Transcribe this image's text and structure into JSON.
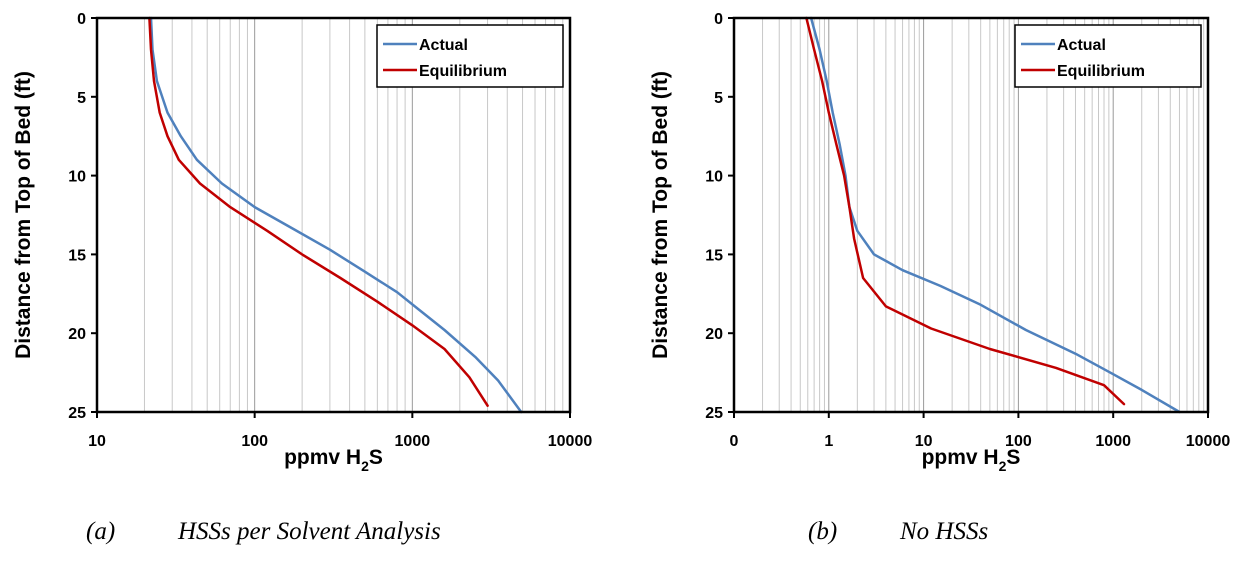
{
  "charts": [
    {
      "type": "line",
      "xscale": "log",
      "xlim": [
        10,
        10000
      ],
      "ylim": [
        0,
        25
      ],
      "y_inverted": true,
      "xlabel_parts": [
        "ppmv H",
        "2",
        "S"
      ],
      "ylabel": "Distance from Top of Bed (ft)",
      "x_ticks": [
        10,
        100,
        1000,
        10000
      ],
      "x_tick_labels": [
        "10",
        "100",
        "1000",
        "10000"
      ],
      "y_ticks": [
        0,
        5,
        10,
        15,
        20,
        25
      ],
      "y_tick_labels": [
        "0",
        "5",
        "10",
        "15",
        "20",
        "25"
      ],
      "grid": {
        "x_minor": true,
        "y": false
      },
      "legend_position": "top-right",
      "series": [
        {
          "name": "Actual",
          "color": "#4f81bd",
          "x": [
            22,
            22.5,
            24,
            28,
            34,
            43,
            62,
            100,
            170,
            300,
            500,
            800,
            1100,
            1600,
            2500,
            3500,
            4900
          ],
          "y": [
            0,
            2,
            4,
            6,
            7.5,
            9,
            10.5,
            12,
            13.3,
            14.7,
            16.1,
            17.4,
            18.5,
            19.8,
            21.5,
            23,
            25
          ]
        },
        {
          "name": "Equilibrium",
          "color": "#c00000",
          "x": [
            21.5,
            22,
            23,
            25,
            28,
            33,
            45,
            70,
            120,
            200,
            350,
            600,
            1000,
            1600,
            2300,
            3000
          ],
          "y": [
            0,
            2,
            4,
            6,
            7.5,
            9,
            10.5,
            12,
            13.5,
            15,
            16.5,
            18,
            19.5,
            21,
            22.8,
            24.6
          ]
        }
      ]
    },
    {
      "type": "line",
      "xscale": "log",
      "xlim": [
        0.1,
        10000
      ],
      "ylim": [
        0,
        25
      ],
      "y_inverted": true,
      "xlabel_parts": [
        "ppmv H",
        "2",
        "S"
      ],
      "ylabel": "Distance from Top of Bed (ft)",
      "x_ticks": [
        0.1,
        1,
        10,
        100,
        1000,
        10000
      ],
      "x_tick_labels": [
        "0",
        "1",
        "10",
        "100",
        "1000",
        "10000"
      ],
      "y_ticks": [
        0,
        5,
        10,
        15,
        20,
        25
      ],
      "y_tick_labels": [
        "0",
        "5",
        "10",
        "15",
        "20",
        "25"
      ],
      "grid": {
        "x_minor": true,
        "y": false
      },
      "legend_position": "top-right",
      "series": [
        {
          "name": "Actual",
          "color": "#4f81bd",
          "x": [
            0.65,
            0.8,
            0.95,
            1.1,
            1.3,
            1.5,
            1.65,
            2,
            3,
            6,
            15,
            40,
            120,
            400,
            1000,
            2000,
            5000
          ],
          "y": [
            0,
            2,
            4,
            6,
            8,
            10,
            12,
            13.5,
            15,
            16,
            17,
            18.2,
            19.8,
            21.3,
            22.6,
            23.6,
            25
          ]
        },
        {
          "name": "Equilibrium",
          "color": "#c00000",
          "x": [
            0.58,
            0.7,
            0.85,
            1.0,
            1.2,
            1.45,
            1.65,
            1.85,
            2.3,
            4,
            12,
            50,
            250,
            800,
            1300
          ],
          "y": [
            0,
            2,
            4,
            6,
            8,
            10,
            12,
            14,
            16.5,
            18.3,
            19.7,
            21,
            22.2,
            23.3,
            24.5
          ]
        }
      ]
    }
  ],
  "captions": [
    {
      "label": "(a)",
      "text": "HSSs per Solvent Analysis"
    },
    {
      "label": "(b)",
      "text": "No HSSs"
    }
  ]
}
